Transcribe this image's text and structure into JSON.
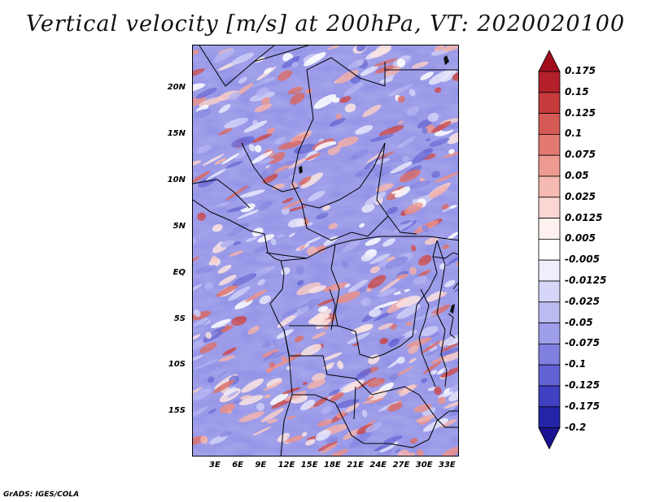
{
  "title": "Vertical velocity [m/s] at 200hPa, VT: 2020020100",
  "credit": "GrADS: IGES/COLA",
  "lat_labels": [
    "20N",
    "15N",
    "10N",
    "5N",
    "EQ",
    "5S",
    "10S",
    "15S"
  ],
  "lon_labels": [
    "3E",
    "6E",
    "9E",
    "12E",
    "15E",
    "18E",
    "21E",
    "24E",
    "27E",
    "30E",
    "33E"
  ],
  "colorbar": {
    "labels": [
      "0.175",
      "0.15",
      "0.125",
      "0.1",
      "0.075",
      "0.05",
      "0.025",
      "0.0125",
      "0.005",
      "-0.005",
      "-0.0125",
      "-0.025",
      "-0.05",
      "-0.075",
      "-0.1",
      "-0.125",
      "-0.175",
      "-0.2"
    ],
    "colors": [
      "#a00e1e",
      "#b3202a",
      "#c63b3b",
      "#d55a55",
      "#e27a72",
      "#ed9a91",
      "#f5bab2",
      "#fad7d2",
      "#fdf0ee",
      "#ffffff",
      "#eeeefc",
      "#d6d6f8",
      "#bbbbf2",
      "#9e9eea",
      "#8080e0",
      "#6262d4",
      "#4040c2",
      "#2424a8",
      "#1a1290"
    ]
  }
}
